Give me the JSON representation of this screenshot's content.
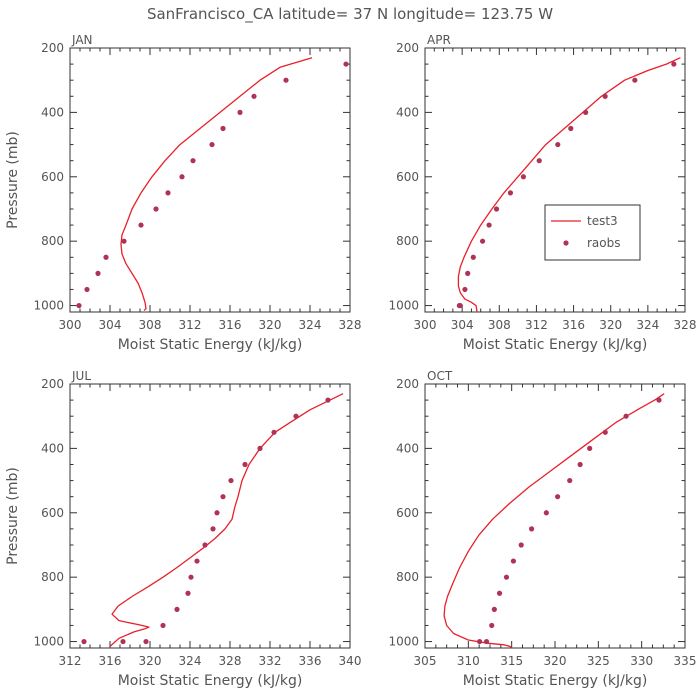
{
  "figure": {
    "title": "SanFrancisco_CA  latitude= 37 N longitude= 123.75 W"
  },
  "style": {
    "model_color": "#e8202a",
    "obs_color": "#b03355",
    "axis_color": "#333333",
    "text_color": "#555555"
  },
  "legend": {
    "panel": 1,
    "placement": "center-right",
    "model_label": "test3",
    "obs_label": "raobs"
  },
  "chart_data": [
    {
      "type": "line",
      "title": "JAN",
      "xlabel": "Moist Static Energy (kJ/kg)",
      "ylabel": "Pressure (mb)",
      "xlim": [
        300,
        328
      ],
      "ylim": [
        1020,
        200
      ],
      "xticks": [
        "300",
        "304",
        "308",
        "312",
        "316",
        "320",
        "324",
        "328"
      ],
      "yticks": [
        "200",
        "400",
        "600",
        "800",
        "1000"
      ],
      "xtick_values": [
        300,
        304,
        308,
        312,
        316,
        320,
        324,
        328
      ],
      "ytick_values": [
        200,
        400,
        600,
        800,
        1000
      ],
      "series": [
        {
          "name": "test3",
          "kind": "line",
          "x": [
            324.2,
            321,
            319,
            317,
            315,
            313,
            311,
            309.5,
            308.2,
            307.1,
            306.2,
            305.6,
            305.2,
            305.1,
            305.2,
            305.6,
            306.2,
            306.8,
            307.2,
            307.5,
            307.6,
            307.4
          ],
          "y": [
            230,
            260,
            300,
            350,
            400,
            450,
            500,
            550,
            600,
            650,
            700,
            750,
            780,
            810,
            840,
            870,
            900,
            930,
            960,
            990,
            1010,
            1015
          ]
        },
        {
          "name": "raobs",
          "kind": "points",
          "x": [
            327.6,
            321.6,
            318.4,
            317,
            315.3,
            314.2,
            312.3,
            311.2,
            309.8,
            308.6,
            307.1,
            305.4,
            303.6,
            302.8,
            301.7,
            300.9
          ],
          "y": [
            250,
            300,
            350,
            400,
            450,
            500,
            550,
            600,
            650,
            700,
            750,
            800,
            850,
            900,
            950,
            1000
          ]
        }
      ]
    },
    {
      "type": "line",
      "title": "APR",
      "xlabel": "Moist Static Energy (kJ/kg)",
      "ylabel": "",
      "xlim": [
        300,
        328
      ],
      "ylim": [
        1020,
        200
      ],
      "xticks": [
        "300",
        "304",
        "308",
        "312",
        "316",
        "320",
        "324",
        "328"
      ],
      "yticks": [
        "200",
        "400",
        "600",
        "800",
        "1000"
      ],
      "xtick_values": [
        300,
        304,
        308,
        312,
        316,
        320,
        324,
        328
      ],
      "ytick_values": [
        200,
        400,
        600,
        800,
        1000
      ],
      "series": [
        {
          "name": "test3",
          "kind": "line",
          "x": [
            327.5,
            326,
            324,
            321.5,
            319,
            317,
            315,
            313,
            311.5,
            310,
            308.5,
            307.2,
            306,
            305,
            304.2,
            303.8,
            303.6,
            303.6,
            303.8,
            304.3,
            305,
            305.5,
            305.6
          ],
          "y": [
            230,
            250,
            270,
            300,
            350,
            400,
            450,
            500,
            550,
            600,
            650,
            700,
            750,
            800,
            850,
            880,
            910,
            940,
            960,
            980,
            990,
            1000,
            1020
          ]
        },
        {
          "name": "raobs",
          "kind": "points",
          "x": [
            326.8,
            322.6,
            319.4,
            317.3,
            315.7,
            314.3,
            312.3,
            310.6,
            309.2,
            307.7,
            306.9,
            306.2,
            305.2,
            304.6,
            304.3,
            303.8,
            303.7
          ],
          "y": [
            250,
            300,
            350,
            400,
            450,
            500,
            550,
            600,
            650,
            700,
            750,
            800,
            850,
            900,
            950,
            1000,
            1000
          ]
        }
      ]
    },
    {
      "type": "line",
      "title": "JUL",
      "xlabel": "Moist Static Energy (kJ/kg)",
      "ylabel": "Pressure (mb)",
      "xlim": [
        312,
        340
      ],
      "ylim": [
        1020,
        200
      ],
      "xticks": [
        "312",
        "316",
        "320",
        "324",
        "328",
        "332",
        "336",
        "340"
      ],
      "yticks": [
        "200",
        "400",
        "600",
        "800",
        "1000"
      ],
      "xtick_values": [
        312,
        316,
        320,
        324,
        328,
        332,
        336,
        340
      ],
      "ytick_values": [
        200,
        400,
        600,
        800,
        1000
      ],
      "series": [
        {
          "name": "test3",
          "kind": "line",
          "x": [
            339.3,
            338,
            336,
            334,
            332.5,
            331,
            329.9,
            329.2,
            328.8,
            328.5,
            328.2,
            327.5,
            326.5,
            325.3,
            324,
            322.7,
            321.3,
            319.8,
            318.2,
            316.8,
            316.2,
            316.9,
            318.9,
            319.9,
            319.5,
            318.4,
            316.9,
            316
          ],
          "y": [
            230,
            250,
            280,
            320,
            350,
            400,
            450,
            500,
            550,
            580,
            620,
            650,
            680,
            710,
            740,
            770,
            800,
            830,
            860,
            890,
            915,
            935,
            948,
            955,
            960,
            970,
            990,
            1015
          ]
        },
        {
          "name": "raobs",
          "kind": "points",
          "x": [
            337.8,
            334.6,
            332.4,
            331,
            329.5,
            328.1,
            327.3,
            326.7,
            326.3,
            325.5,
            324.7,
            324.1,
            323.8,
            322.7,
            321.3,
            319.6,
            317.3,
            313.4
          ],
          "y": [
            250,
            300,
            350,
            400,
            450,
            500,
            550,
            600,
            650,
            700,
            750,
            800,
            850,
            900,
            950,
            1000,
            1000,
            1000
          ]
        }
      ]
    },
    {
      "type": "line",
      "title": "OCT",
      "xlabel": "Moist Static Energy (kJ/kg)",
      "ylabel": "",
      "xlim": [
        305,
        335
      ],
      "ylim": [
        1020,
        200
      ],
      "xticks": [
        "305",
        "310",
        "315",
        "320",
        "325",
        "330",
        "335"
      ],
      "yticks": [
        "200",
        "400",
        "600",
        "800",
        "1000"
      ],
      "xtick_values": [
        305,
        310,
        315,
        320,
        325,
        330,
        335
      ],
      "ytick_values": [
        200,
        400,
        600,
        800,
        1000
      ],
      "series": [
        {
          "name": "test3",
          "kind": "line",
          "x": [
            332.6,
            331.5,
            329.5,
            327,
            324.5,
            322,
            319.5,
            317,
            314.8,
            312.8,
            311.2,
            310,
            309,
            308.2,
            307.6,
            307.3,
            307.2,
            307.5,
            308.3,
            310,
            312.2,
            314.1,
            314.8,
            315
          ],
          "y": [
            230,
            250,
            280,
            320,
            370,
            420,
            470,
            520,
            570,
            620,
            670,
            720,
            770,
            820,
            860,
            890,
            920,
            950,
            975,
            995,
            1005,
            1010,
            1015,
            1020
          ]
        },
        {
          "name": "raobs",
          "kind": "points",
          "x": [
            332,
            328.2,
            325.8,
            324,
            322.9,
            321.7,
            320.3,
            319,
            317.3,
            316.1,
            315.2,
            314.4,
            313.6,
            313,
            312.7,
            312.1,
            311.3
          ],
          "y": [
            250,
            300,
            350,
            400,
            450,
            500,
            550,
            600,
            650,
            700,
            750,
            800,
            850,
            900,
            950,
            1000,
            1000
          ]
        }
      ]
    }
  ]
}
